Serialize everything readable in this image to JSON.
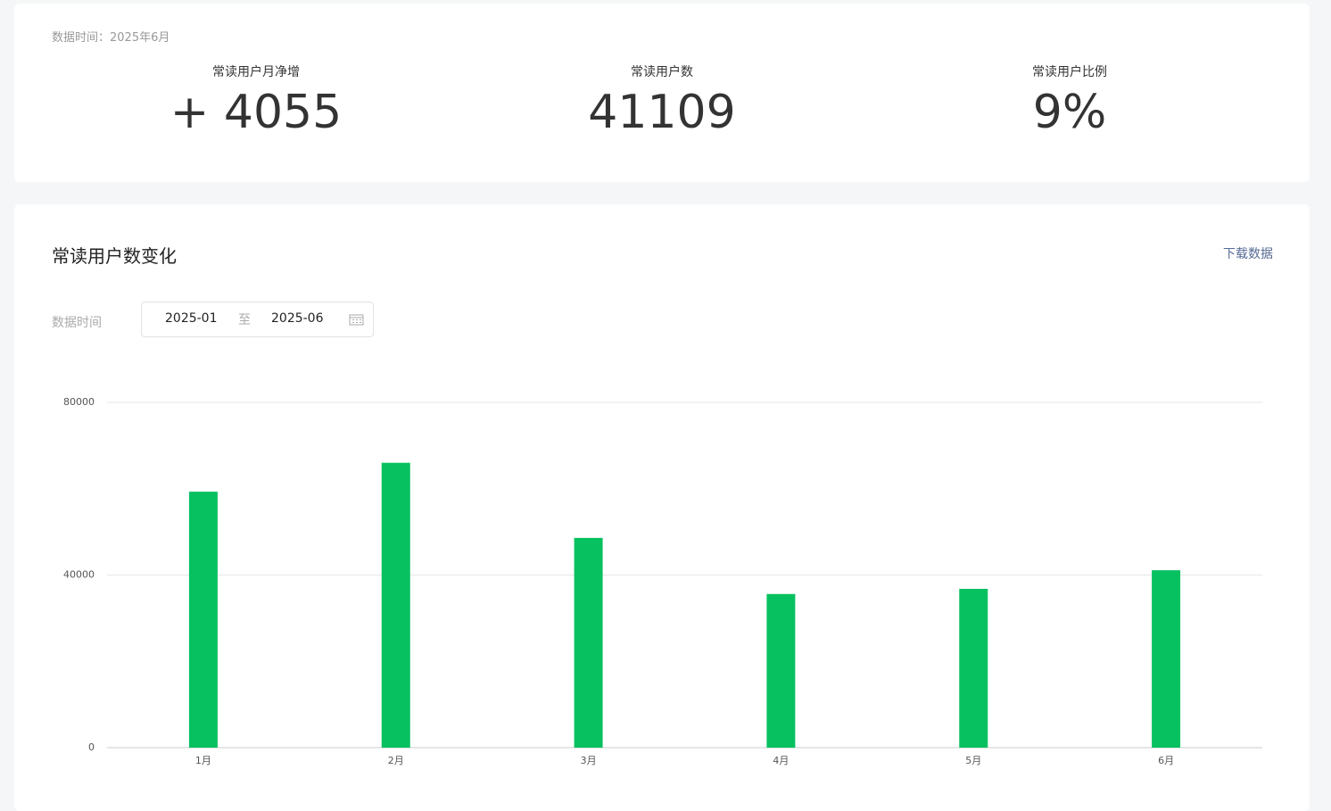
{
  "summary": {
    "data_time": "数据时间：2025年6月",
    "stats": [
      {
        "label": "常读用户月净增",
        "value": "+ 4055"
      },
      {
        "label": "常读用户数",
        "value": "41109"
      },
      {
        "label": "常读用户比例",
        "value": "9%"
      }
    ]
  },
  "chart_data": {
    "type": "bar",
    "title": "常读用户数变化",
    "download": "下载数据",
    "filter_label": "数据时间",
    "date_range": {
      "start": "2025-01",
      "separator": "至",
      "end": "2025-06"
    },
    "categories": [
      "1月",
      "2月",
      "3月",
      "4月",
      "5月",
      "6月"
    ],
    "values": [
      59300,
      66000,
      48600,
      35600,
      36800,
      41109
    ],
    "color": "#07c160",
    "ylim": [
      0,
      80000
    ],
    "yticks": [
      0,
      40000,
      80000
    ],
    "grid": true
  }
}
